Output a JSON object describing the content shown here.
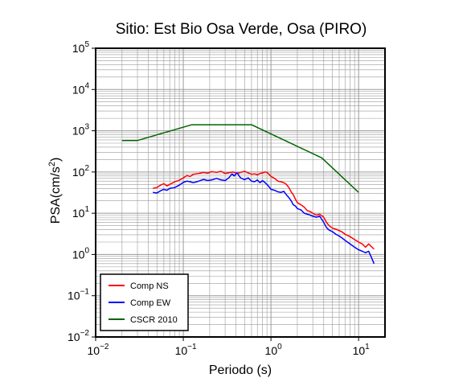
{
  "chart_data": {
    "type": "line",
    "title": "Sitio: Est Bio Osa Verde, Osa (PIRO)",
    "xlabel": "Periodo (s)",
    "ylabel_base": "PSA(cm/s",
    "ylabel_sup": "2",
    "ylabel_tail": ")",
    "x_scale": "log",
    "y_scale": "log",
    "xlim": [
      0.01,
      20
    ],
    "ylim": [
      0.01,
      100000
    ],
    "grid": true,
    "legend_position": "bottom-left",
    "x_ticks": [
      {
        "value": 0.01,
        "base": "10",
        "exp": "−2"
      },
      {
        "value": 0.1,
        "base": "10",
        "exp": "−1"
      },
      {
        "value": 1,
        "base": "10",
        "exp": "0"
      },
      {
        "value": 10,
        "base": "10",
        "exp": "1"
      }
    ],
    "y_ticks": [
      {
        "value": 0.01,
        "base": "10",
        "exp": "−2"
      },
      {
        "value": 0.1,
        "base": "10",
        "exp": "−1"
      },
      {
        "value": 1,
        "base": "10",
        "exp": "0"
      },
      {
        "value": 10,
        "base": "10",
        "exp": "1"
      },
      {
        "value": 100,
        "base": "10",
        "exp": "2"
      },
      {
        "value": 1000,
        "base": "10",
        "exp": "3"
      },
      {
        "value": 10000,
        "base": "10",
        "exp": "4"
      },
      {
        "value": 100000,
        "base": "10",
        "exp": "5"
      }
    ],
    "series": [
      {
        "name": "Comp NS",
        "color": "#ff0000",
        "points": [
          [
            0.045,
            40
          ],
          [
            0.05,
            42
          ],
          [
            0.055,
            48
          ],
          [
            0.06,
            52
          ],
          [
            0.065,
            46
          ],
          [
            0.07,
            50
          ],
          [
            0.08,
            58
          ],
          [
            0.09,
            63
          ],
          [
            0.1,
            72
          ],
          [
            0.11,
            82
          ],
          [
            0.12,
            78
          ],
          [
            0.13,
            88
          ],
          [
            0.15,
            92
          ],
          [
            0.17,
            98
          ],
          [
            0.19,
            94
          ],
          [
            0.21,
            102
          ],
          [
            0.24,
            98
          ],
          [
            0.27,
            104
          ],
          [
            0.3,
            92
          ],
          [
            0.33,
            96
          ],
          [
            0.37,
            100
          ],
          [
            0.41,
            92
          ],
          [
            0.45,
            98
          ],
          [
            0.5,
            104
          ],
          [
            0.55,
            95
          ],
          [
            0.6,
            88
          ],
          [
            0.65,
            90
          ],
          [
            0.7,
            85
          ],
          [
            0.75,
            92
          ],
          [
            0.8,
            95
          ],
          [
            0.85,
            100
          ],
          [
            0.9,
            98
          ],
          [
            0.95,
            88
          ],
          [
            1.0,
            78
          ],
          [
            1.1,
            70
          ],
          [
            1.2,
            60
          ],
          [
            1.3,
            58
          ],
          [
            1.4,
            55
          ],
          [
            1.5,
            50
          ],
          [
            1.6,
            42
          ],
          [
            1.7,
            33
          ],
          [
            1.8,
            28
          ],
          [
            1.9,
            22
          ],
          [
            2.0,
            18
          ],
          [
            2.2,
            16
          ],
          [
            2.4,
            14
          ],
          [
            2.6,
            11.5
          ],
          [
            2.8,
            11
          ],
          [
            3.0,
            10
          ],
          [
            3.3,
            9
          ],
          [
            3.6,
            9.5
          ],
          [
            4.0,
            8
          ],
          [
            4.3,
            6
          ],
          [
            4.6,
            5
          ],
          [
            5.0,
            4.4
          ],
          [
            5.5,
            4.1
          ],
          [
            6.0,
            3.8
          ],
          [
            6.5,
            3.5
          ],
          [
            7.0,
            3.1
          ],
          [
            8.0,
            2.7
          ],
          [
            9.0,
            2.3
          ],
          [
            10.0,
            2.0
          ],
          [
            11.0,
            1.8
          ],
          [
            12.0,
            1.5
          ],
          [
            13.0,
            1.8
          ],
          [
            15.0,
            1.35
          ]
        ]
      },
      {
        "name": "Comp EW",
        "color": "#0000ff",
        "points": [
          [
            0.045,
            32
          ],
          [
            0.05,
            31
          ],
          [
            0.055,
            35
          ],
          [
            0.06,
            38
          ],
          [
            0.065,
            36
          ],
          [
            0.07,
            40
          ],
          [
            0.08,
            42
          ],
          [
            0.09,
            48
          ],
          [
            0.1,
            56
          ],
          [
            0.11,
            60
          ],
          [
            0.12,
            58
          ],
          [
            0.13,
            55
          ],
          [
            0.15,
            60
          ],
          [
            0.17,
            66
          ],
          [
            0.19,
            62
          ],
          [
            0.21,
            64
          ],
          [
            0.24,
            70
          ],
          [
            0.27,
            64
          ],
          [
            0.3,
            62
          ],
          [
            0.33,
            72
          ],
          [
            0.36,
            90
          ],
          [
            0.38,
            80
          ],
          [
            0.41,
            95
          ],
          [
            0.45,
            72
          ],
          [
            0.5,
            65
          ],
          [
            0.55,
            72
          ],
          [
            0.6,
            60
          ],
          [
            0.65,
            58
          ],
          [
            0.7,
            64
          ],
          [
            0.75,
            55
          ],
          [
            0.8,
            62
          ],
          [
            0.85,
            56
          ],
          [
            0.9,
            50
          ],
          [
            0.95,
            44
          ],
          [
            1.0,
            38
          ],
          [
            1.1,
            36
          ],
          [
            1.2,
            33
          ],
          [
            1.3,
            32
          ],
          [
            1.4,
            34
          ],
          [
            1.5,
            28
          ],
          [
            1.6,
            24
          ],
          [
            1.7,
            20
          ],
          [
            1.8,
            16
          ],
          [
            1.9,
            15
          ],
          [
            2.0,
            13
          ],
          [
            2.2,
            12
          ],
          [
            2.4,
            10
          ],
          [
            2.6,
            9.5
          ],
          [
            2.8,
            9
          ],
          [
            3.0,
            8.5
          ],
          [
            3.3,
            8
          ],
          [
            3.6,
            8.5
          ],
          [
            4.0,
            6
          ],
          [
            4.3,
            4.5
          ],
          [
            4.6,
            3.9
          ],
          [
            5.0,
            3.6
          ],
          [
            5.5,
            3.1
          ],
          [
            6.0,
            2.8
          ],
          [
            6.5,
            2.5
          ],
          [
            7.0,
            2.2
          ],
          [
            8.0,
            1.8
          ],
          [
            9.0,
            1.5
          ],
          [
            10.0,
            1.3
          ],
          [
            11.0,
            1.2
          ],
          [
            12.0,
            1.1
          ],
          [
            13.0,
            1.2
          ],
          [
            14.0,
            0.85
          ],
          [
            15.0,
            0.6
          ]
        ]
      },
      {
        "name": "CSCR 2010",
        "color": "#006400",
        "points": [
          [
            0.02,
            580
          ],
          [
            0.03,
            580
          ],
          [
            0.125,
            1400
          ],
          [
            0.6,
            1400
          ],
          [
            3.8,
            220
          ],
          [
            10.0,
            32
          ]
        ]
      }
    ]
  }
}
